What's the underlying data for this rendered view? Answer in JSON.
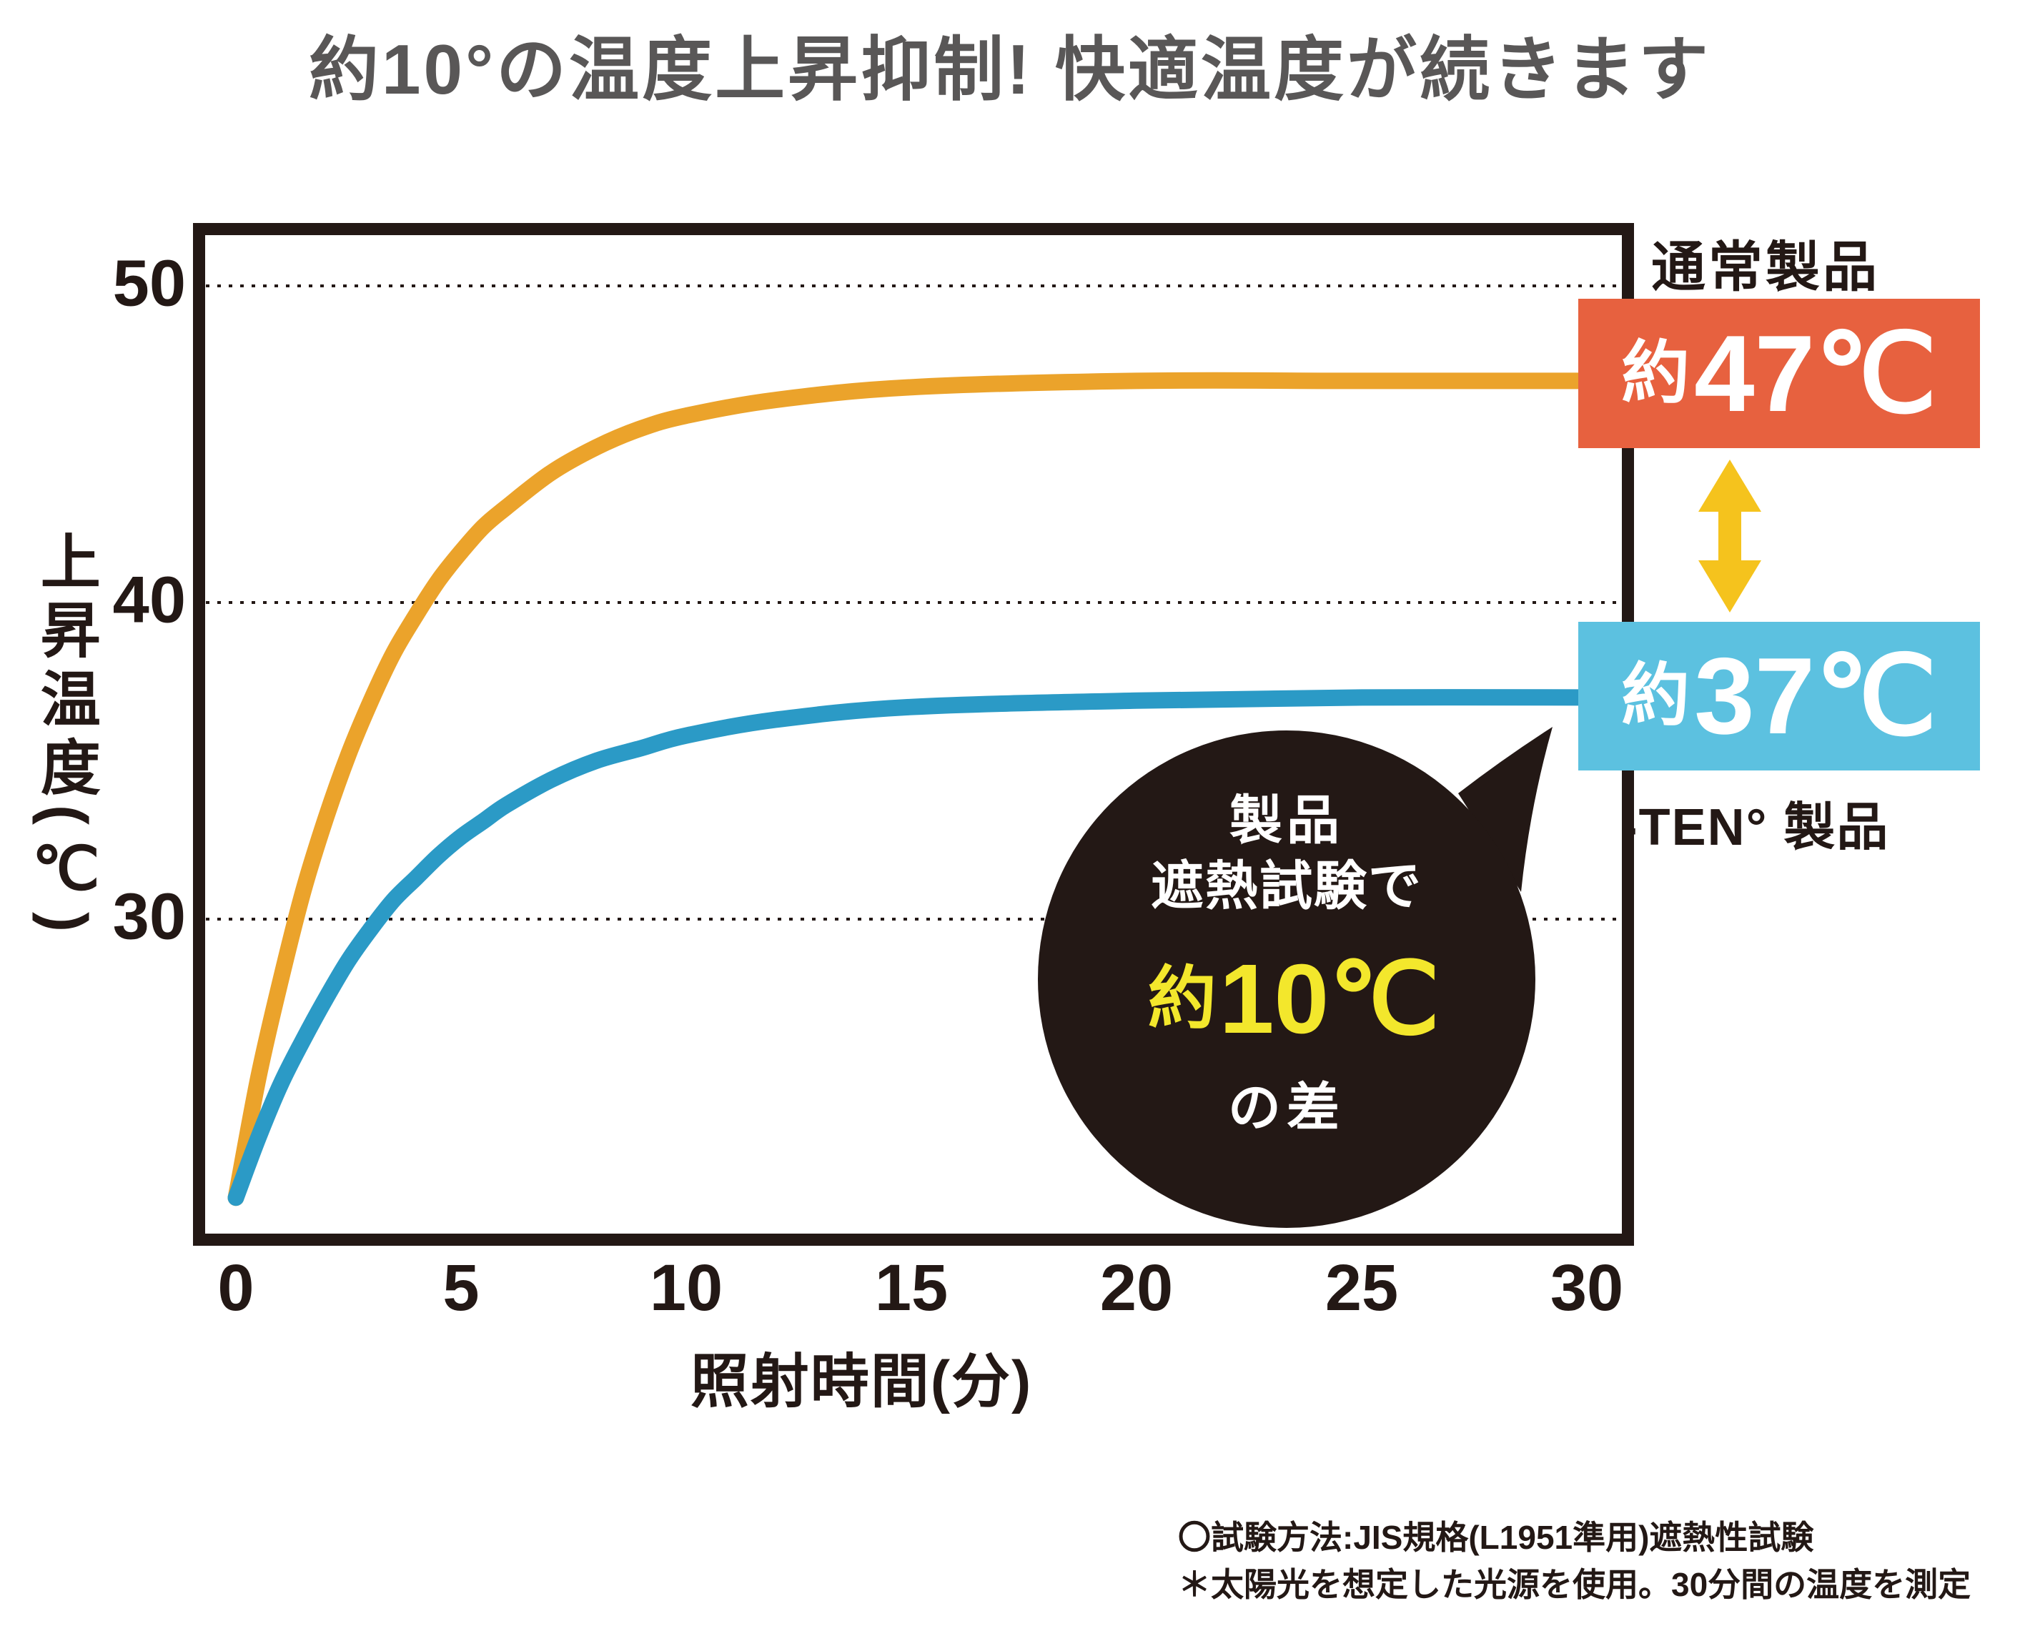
{
  "title": {
    "text": "約10°の温度上昇抑制! 快適温度が続きます",
    "color": "#595757"
  },
  "y_axis": {
    "label": "上昇温度(℃)",
    "ticks": [
      50,
      40,
      30
    ]
  },
  "x_axis": {
    "label": "照射時間(分)",
    "ticks": [
      0,
      5,
      10,
      15,
      20,
      25,
      30
    ]
  },
  "series_labels": {
    "normal": "通常製品",
    "ten": "-TEN° 製品"
  },
  "badges": {
    "normal": {
      "prefix": "約",
      "value": "47℃",
      "color": "#e7613f"
    },
    "ten": {
      "prefix": "約",
      "value": "37℃",
      "color": "#5cc1e0"
    }
  },
  "bubble": {
    "line1": "製品",
    "line2": "遮熱試験で",
    "highlight_prefix": "約",
    "highlight_value": "10℃",
    "line4": "の差",
    "bg": "#231815",
    "highlight_color": "#f3e72c"
  },
  "footnotes": [
    "〇試験方法:JIS規格(L1951準用)遮熱性試験",
    "＊太陽光を想定した光源を使用。30分間の温度を測定"
  ],
  "colors": {
    "ink": "#231815",
    "title_gray": "#595757",
    "normal_curve": "#eba32b",
    "ten_curve": "#2b9ac6",
    "arrow_yellow": "#f5c31d",
    "gridline": "#231815",
    "background": "#ffffff"
  },
  "chart_data": {
    "type": "line",
    "title": "約10°の温度上昇抑制! 快適温度が続きます",
    "xlabel": "照射時間(分)",
    "ylabel": "上昇温度(℃)",
    "xlim": [
      0,
      30
    ],
    "ylim": [
      20,
      52
    ],
    "y_ticks": [
      30,
      40,
      50
    ],
    "grid": "horizontal dotted lines at 30, 40, 50",
    "legend_position": "right side callout badges",
    "annotation": "製品遮熱試験で約10℃の差 (about 10°C difference in product heat-shield test)",
    "series": [
      {
        "name": "通常製品",
        "final_label": "約47℃",
        "color": "#eba32b",
        "points": [
          [
            0,
            21.2
          ],
          [
            0.5,
            25.0
          ],
          [
            1,
            28.1
          ],
          [
            1.5,
            30.9
          ],
          [
            2,
            33.2
          ],
          [
            2.5,
            35.2
          ],
          [
            3,
            36.9
          ],
          [
            3.5,
            38.4
          ],
          [
            4,
            39.6
          ],
          [
            4.5,
            40.7
          ],
          [
            5,
            41.6
          ],
          [
            5.5,
            42.4
          ],
          [
            6,
            43.0
          ],
          [
            7,
            44.1
          ],
          [
            8,
            44.9
          ],
          [
            9,
            45.5
          ],
          [
            10,
            45.9
          ],
          [
            12,
            46.4
          ],
          [
            15,
            46.8
          ],
          [
            20,
            47.0
          ],
          [
            25,
            47.0
          ],
          [
            30,
            47.0
          ]
        ]
      },
      {
        "name": "-TEN° 製品",
        "final_label": "約37℃",
        "color": "#2b9ac6",
        "points": [
          [
            0,
            21.2
          ],
          [
            0.5,
            23.1
          ],
          [
            1,
            24.8
          ],
          [
            1.5,
            26.2
          ],
          [
            2,
            27.5
          ],
          [
            2.5,
            28.7
          ],
          [
            3,
            29.7
          ],
          [
            3.5,
            30.6
          ],
          [
            4,
            31.3
          ],
          [
            4.5,
            32.0
          ],
          [
            5,
            32.6
          ],
          [
            5.5,
            33.1
          ],
          [
            6,
            33.6
          ],
          [
            7,
            34.4
          ],
          [
            8,
            35.0
          ],
          [
            9,
            35.4
          ],
          [
            10,
            35.8
          ],
          [
            12,
            36.3
          ],
          [
            15,
            36.7
          ],
          [
            20,
            36.9
          ],
          [
            25,
            37.0
          ],
          [
            30,
            37.0
          ]
        ]
      }
    ]
  }
}
